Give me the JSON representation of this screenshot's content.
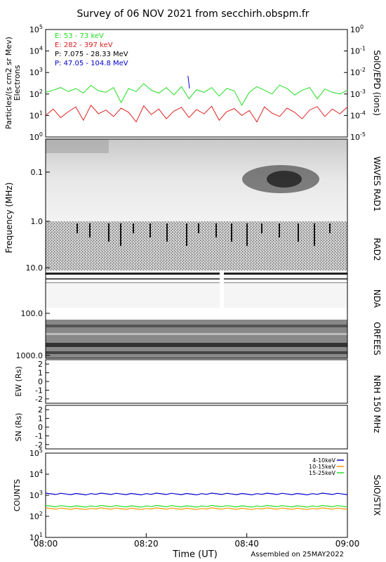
{
  "title": "Survey of 06 NOV 2021 from secchirh.obspm.fr",
  "footer": "Assembled on 25MAY2022",
  "x_axis": {
    "label": "Time (UT)",
    "range": [
      "08:00",
      "09:00"
    ],
    "ticks": [
      "08:00",
      "08:20",
      "08:40",
      "09:00"
    ]
  },
  "right_labels": {
    "particles": "SolO/EPD (ions)",
    "waves_rad1": "WAVES RAD1",
    "rad2": "RAD2",
    "nda": "NDA",
    "orfees": "ORFEES",
    "nrh": "NRH 150 MHz",
    "stix": "SolO/STIX"
  },
  "colors": {
    "green": "#22dd22",
    "red": "#dd2222",
    "black": "#000000",
    "blue": "#0000cc",
    "orange": "#ff9900"
  },
  "chart_data": [
    {
      "panel": "particles",
      "type": "line",
      "ylabel": "Particles/(s cm2 sr MeV) Electrons",
      "ylabel_lines": [
        "Particles/(s cm2 sr Mev)",
        "Electrons"
      ],
      "yscale": "log",
      "ylim": [
        1,
        100000
      ],
      "yticks": [
        "10^0",
        "10^1",
        "10^2",
        "10^3",
        "10^4",
        "10^5"
      ],
      "y2label": "SolO/EPD (ions)",
      "y2lim": [
        1e-05,
        1
      ],
      "y2ticks": [
        "10^-5",
        "10^-4",
        "10^-3",
        "10^-2",
        "10^-1",
        "10^0"
      ],
      "legend": [
        {
          "label": "E: 53 - 73 keV",
          "color": "#22dd22"
        },
        {
          "label": "E: 282 - 397 keV",
          "color": "#dd2222"
        },
        {
          "label": "P: 7.075 - 28.33 MeV",
          "color": "#000000"
        },
        {
          "label": "P: 47.05 - 104.8 MeV",
          "color": "#0000cc"
        }
      ],
      "series": [
        {
          "name": "E: 53 - 73 keV",
          "color": "#22dd22",
          "x": [
            0,
            1.5,
            3,
            4.5,
            6,
            7.5,
            9,
            10.5,
            12,
            13.5,
            15,
            16.5,
            18,
            19.5,
            21,
            22.5,
            24,
            25.5,
            27,
            28.5,
            30,
            31.5,
            33,
            34.5,
            36,
            37.5,
            39,
            40.5,
            42,
            43.5,
            45,
            46.5,
            48,
            49.5,
            51,
            52.5,
            54,
            55.5,
            57,
            58.5,
            60
          ],
          "y": [
            120,
            150,
            200,
            130,
            180,
            110,
            250,
            140,
            120,
            200,
            40,
            180,
            130,
            300,
            150,
            110,
            200,
            90,
            220,
            60,
            160,
            120,
            200,
            80,
            180,
            140,
            30,
            120,
            220,
            150,
            100,
            260,
            180,
            90,
            150,
            200,
            60,
            170,
            120,
            100,
            150
          ]
        },
        {
          "name": "E: 282 - 397 keV",
          "color": "#dd2222",
          "x": [
            0,
            1.5,
            3,
            4.5,
            6,
            7.5,
            9,
            10.5,
            12,
            13.5,
            15,
            16.5,
            18,
            19.5,
            21,
            22.5,
            24,
            25.5,
            27,
            28.5,
            30,
            31.5,
            33,
            34.5,
            36,
            37.5,
            39,
            40.5,
            42,
            43.5,
            45,
            46.5,
            48,
            49.5,
            51,
            52.5,
            54,
            55.5,
            57,
            58.5,
            60
          ],
          "y": [
            10,
            20,
            8,
            15,
            25,
            6,
            30,
            12,
            18,
            9,
            22,
            14,
            5,
            28,
            11,
            20,
            7,
            16,
            24,
            8,
            19,
            12,
            27,
            6,
            15,
            21,
            10,
            17,
            5,
            25,
            13,
            9,
            22,
            14,
            7,
            18,
            26,
            9,
            20,
            12,
            25
          ]
        },
        {
          "name": "P: 47.05 - 104.8 MeV",
          "color": "#0000cc",
          "x": [
            28.3,
            28.6
          ],
          "y": [
            700,
            180
          ]
        }
      ]
    },
    {
      "panel": "waves_rad1",
      "type": "heatmap",
      "ylabel": "Frequency (MHz)",
      "yscale": "log",
      "ylim_mhz": [
        0.04,
        1.0
      ],
      "yticks": [
        "0.1",
        "1.0"
      ],
      "label": "WAVES RAD1"
    },
    {
      "panel": "rad2",
      "type": "heatmap",
      "yscale": "log",
      "ylim_mhz": [
        1.0,
        14.0
      ],
      "yticks": [
        "1.0",
        "10.0"
      ],
      "label": "RAD2"
    },
    {
      "panel": "nda",
      "type": "heatmap",
      "yscale": "log",
      "ylim_mhz": [
        14.0,
        80.0
      ],
      "label": "NDA"
    },
    {
      "panel": "orfees",
      "type": "heatmap",
      "yscale": "log",
      "ylim_mhz": [
        140,
        1000
      ],
      "yticks": [
        "100.0",
        "1000.0"
      ],
      "label": "ORFEES"
    },
    {
      "panel": "nrh_ew",
      "type": "line",
      "ylabel": "EW (Rs)",
      "ylim": [
        -2.5,
        2.5
      ],
      "yticks": [
        -2,
        -1,
        0,
        1,
        2
      ],
      "series": []
    },
    {
      "panel": "nrh_sn",
      "type": "line",
      "ylabel": "SN (Rs)",
      "ylim": [
        -2.5,
        2.5
      ],
      "yticks": [
        -2,
        -1,
        0,
        1,
        2
      ],
      "series": []
    },
    {
      "panel": "stix",
      "type": "line",
      "ylabel": "COUNTS",
      "yscale": "log",
      "ylim": [
        10,
        100000
      ],
      "yticks": [
        "10^1",
        "10^2",
        "10^3",
        "10^4",
        "10^5"
      ],
      "legend_position": "top-right",
      "legend": [
        {
          "label": "4-10keV",
          "color": "#0000cc"
        },
        {
          "label": "10-15keV",
          "color": "#ff9900"
        },
        {
          "label": "15-25keV",
          "color": "#22dd22"
        }
      ],
      "series": [
        {
          "name": "4-10keV",
          "color": "#0000cc",
          "x": [
            0,
            60
          ],
          "y": [
            1150,
            1150
          ]
        },
        {
          "name": "10-15keV",
          "color": "#ff9900",
          "x": [
            0,
            60
          ],
          "y": [
            230,
            230
          ]
        },
        {
          "name": "15-25keV",
          "color": "#22dd22",
          "x": [
            0,
            60
          ],
          "y": [
            300,
            300
          ]
        }
      ]
    }
  ]
}
